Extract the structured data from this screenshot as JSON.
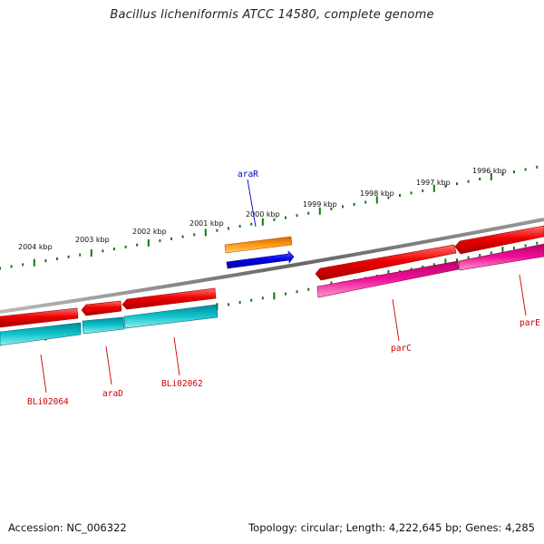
{
  "title": "Bacillus licheniformis ATCC 14580, complete genome",
  "footer": {
    "accession_text": "Accession: NC_006322",
    "summary_text": "Topology: circular; Length: 4,222,645 bp; Genes: 4,285"
  },
  "kbp_labels": [
    "1996 kbp",
    "1997 kbp",
    "1998 kbp",
    "1999 kbp",
    "2000 kbp",
    "2001 kbp",
    "2002 kbp",
    "2003 kbp",
    "2004 kbp"
  ],
  "gene_labels": {
    "araR": "araR",
    "parC": "parC",
    "parE": "parE",
    "BLi02064": "BLi02064",
    "araD": "araD",
    "BLi02062": "BLi02062"
  },
  "colors": {
    "backbone": "#777777",
    "tick": "#117711",
    "cds": "#ee0000",
    "cds_alt": "#ee1199",
    "cds_other": "#11c4cc",
    "araR_gene": "#ff8800",
    "araR_cds": "#0000ee",
    "label_red": "#cc0000",
    "label_blue": "#0000cc"
  }
}
